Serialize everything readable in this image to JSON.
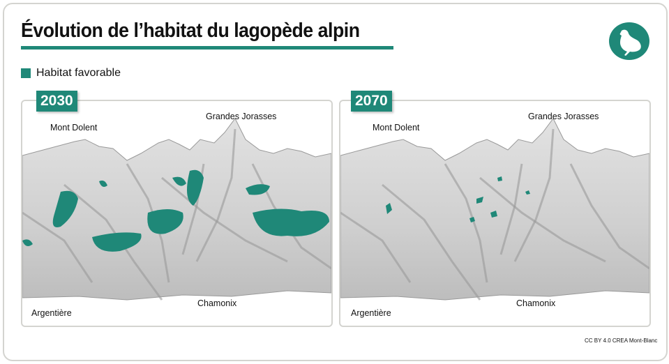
{
  "title": "Évolution de l’habitat du lagopède alpin",
  "icon": "ptarmigan-bird-icon",
  "accent_color": "#1f8878",
  "legend": {
    "label": "Habitat favorable",
    "color": "#1f8878"
  },
  "panels": [
    {
      "year": "2030",
      "labels": {
        "mont_dolent": "Mont Dolent",
        "grandes_jorasses": "Grandes Jorasses",
        "argentiere": "Argentière",
        "chamonix": "Chamonix"
      }
    },
    {
      "year": "2070",
      "labels": {
        "mont_dolent": "Mont Dolent",
        "grandes_jorasses": "Grandes Jorasses",
        "argentiere": "Argentière",
        "chamonix": "Chamonix"
      }
    }
  ],
  "credit": "CC BY 4.0 CREA Mont-Blanc"
}
